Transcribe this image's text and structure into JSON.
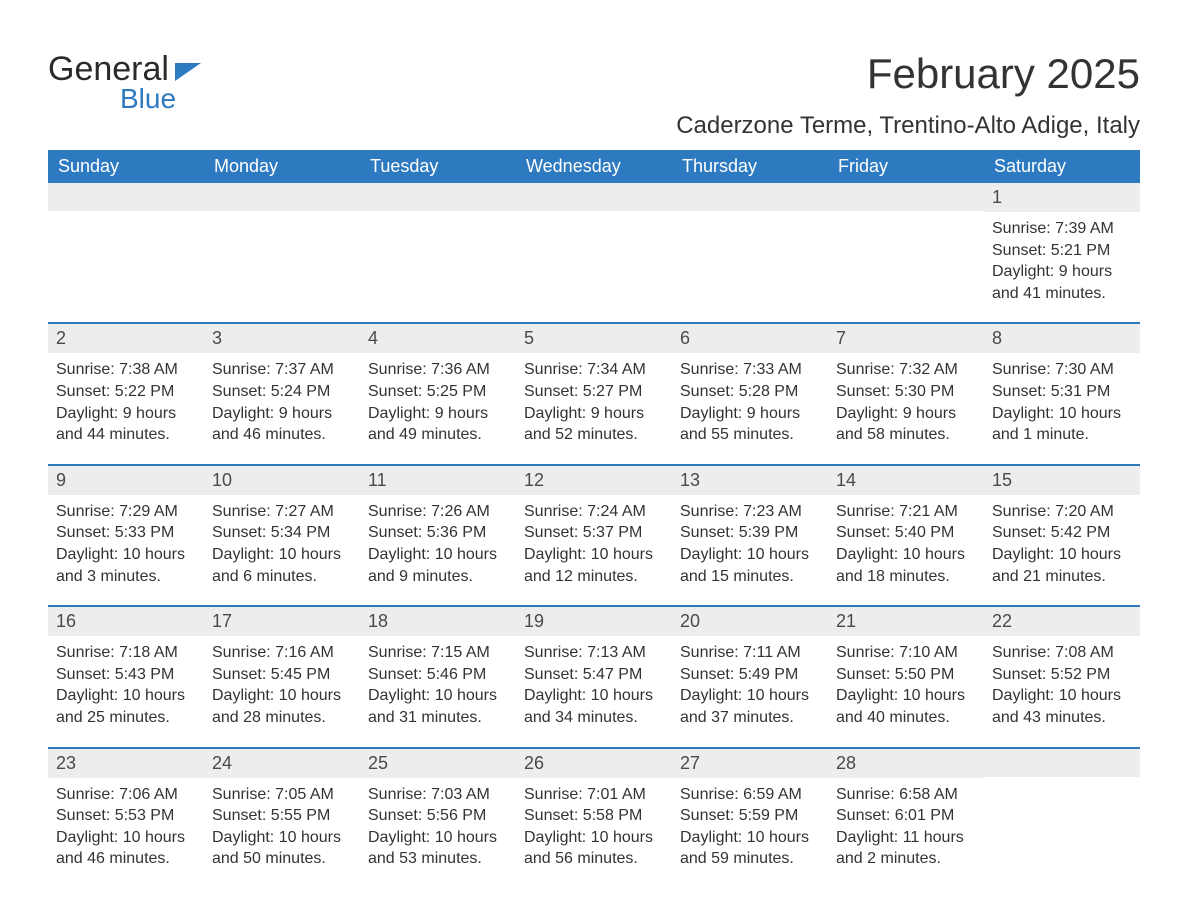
{
  "brand": {
    "word1": "General",
    "word2": "Blue"
  },
  "title": "February 2025",
  "location": "Caderzone Terme, Trentino-Alto Adige, Italy",
  "colors": {
    "header_bg": "#2d7ac0",
    "header_text": "#ffffff",
    "daynum_bg": "#ededed",
    "body_text": "#333333",
    "page_bg": "#ffffff",
    "row_border": "#2d7ac0"
  },
  "day_headers": [
    "Sunday",
    "Monday",
    "Tuesday",
    "Wednesday",
    "Thursday",
    "Friday",
    "Saturday"
  ],
  "weeks": [
    [
      {
        "n": "",
        "sunrise": "",
        "sunset": "",
        "daylight": ""
      },
      {
        "n": "",
        "sunrise": "",
        "sunset": "",
        "daylight": ""
      },
      {
        "n": "",
        "sunrise": "",
        "sunset": "",
        "daylight": ""
      },
      {
        "n": "",
        "sunrise": "",
        "sunset": "",
        "daylight": ""
      },
      {
        "n": "",
        "sunrise": "",
        "sunset": "",
        "daylight": ""
      },
      {
        "n": "",
        "sunrise": "",
        "sunset": "",
        "daylight": ""
      },
      {
        "n": "1",
        "sunrise": "Sunrise: 7:39 AM",
        "sunset": "Sunset: 5:21 PM",
        "daylight": "Daylight: 9 hours and 41 minutes."
      }
    ],
    [
      {
        "n": "2",
        "sunrise": "Sunrise: 7:38 AM",
        "sunset": "Sunset: 5:22 PM",
        "daylight": "Daylight: 9 hours and 44 minutes."
      },
      {
        "n": "3",
        "sunrise": "Sunrise: 7:37 AM",
        "sunset": "Sunset: 5:24 PM",
        "daylight": "Daylight: 9 hours and 46 minutes."
      },
      {
        "n": "4",
        "sunrise": "Sunrise: 7:36 AM",
        "sunset": "Sunset: 5:25 PM",
        "daylight": "Daylight: 9 hours and 49 minutes."
      },
      {
        "n": "5",
        "sunrise": "Sunrise: 7:34 AM",
        "sunset": "Sunset: 5:27 PM",
        "daylight": "Daylight: 9 hours and 52 minutes."
      },
      {
        "n": "6",
        "sunrise": "Sunrise: 7:33 AM",
        "sunset": "Sunset: 5:28 PM",
        "daylight": "Daylight: 9 hours and 55 minutes."
      },
      {
        "n": "7",
        "sunrise": "Sunrise: 7:32 AM",
        "sunset": "Sunset: 5:30 PM",
        "daylight": "Daylight: 9 hours and 58 minutes."
      },
      {
        "n": "8",
        "sunrise": "Sunrise: 7:30 AM",
        "sunset": "Sunset: 5:31 PM",
        "daylight": "Daylight: 10 hours and 1 minute."
      }
    ],
    [
      {
        "n": "9",
        "sunrise": "Sunrise: 7:29 AM",
        "sunset": "Sunset: 5:33 PM",
        "daylight": "Daylight: 10 hours and 3 minutes."
      },
      {
        "n": "10",
        "sunrise": "Sunrise: 7:27 AM",
        "sunset": "Sunset: 5:34 PM",
        "daylight": "Daylight: 10 hours and 6 minutes."
      },
      {
        "n": "11",
        "sunrise": "Sunrise: 7:26 AM",
        "sunset": "Sunset: 5:36 PM",
        "daylight": "Daylight: 10 hours and 9 minutes."
      },
      {
        "n": "12",
        "sunrise": "Sunrise: 7:24 AM",
        "sunset": "Sunset: 5:37 PM",
        "daylight": "Daylight: 10 hours and 12 minutes."
      },
      {
        "n": "13",
        "sunrise": "Sunrise: 7:23 AM",
        "sunset": "Sunset: 5:39 PM",
        "daylight": "Daylight: 10 hours and 15 minutes."
      },
      {
        "n": "14",
        "sunrise": "Sunrise: 7:21 AM",
        "sunset": "Sunset: 5:40 PM",
        "daylight": "Daylight: 10 hours and 18 minutes."
      },
      {
        "n": "15",
        "sunrise": "Sunrise: 7:20 AM",
        "sunset": "Sunset: 5:42 PM",
        "daylight": "Daylight: 10 hours and 21 minutes."
      }
    ],
    [
      {
        "n": "16",
        "sunrise": "Sunrise: 7:18 AM",
        "sunset": "Sunset: 5:43 PM",
        "daylight": "Daylight: 10 hours and 25 minutes."
      },
      {
        "n": "17",
        "sunrise": "Sunrise: 7:16 AM",
        "sunset": "Sunset: 5:45 PM",
        "daylight": "Daylight: 10 hours and 28 minutes."
      },
      {
        "n": "18",
        "sunrise": "Sunrise: 7:15 AM",
        "sunset": "Sunset: 5:46 PM",
        "daylight": "Daylight: 10 hours and 31 minutes."
      },
      {
        "n": "19",
        "sunrise": "Sunrise: 7:13 AM",
        "sunset": "Sunset: 5:47 PM",
        "daylight": "Daylight: 10 hours and 34 minutes."
      },
      {
        "n": "20",
        "sunrise": "Sunrise: 7:11 AM",
        "sunset": "Sunset: 5:49 PM",
        "daylight": "Daylight: 10 hours and 37 minutes."
      },
      {
        "n": "21",
        "sunrise": "Sunrise: 7:10 AM",
        "sunset": "Sunset: 5:50 PM",
        "daylight": "Daylight: 10 hours and 40 minutes."
      },
      {
        "n": "22",
        "sunrise": "Sunrise: 7:08 AM",
        "sunset": "Sunset: 5:52 PM",
        "daylight": "Daylight: 10 hours and 43 minutes."
      }
    ],
    [
      {
        "n": "23",
        "sunrise": "Sunrise: 7:06 AM",
        "sunset": "Sunset: 5:53 PM",
        "daylight": "Daylight: 10 hours and 46 minutes."
      },
      {
        "n": "24",
        "sunrise": "Sunrise: 7:05 AM",
        "sunset": "Sunset: 5:55 PM",
        "daylight": "Daylight: 10 hours and 50 minutes."
      },
      {
        "n": "25",
        "sunrise": "Sunrise: 7:03 AM",
        "sunset": "Sunset: 5:56 PM",
        "daylight": "Daylight: 10 hours and 53 minutes."
      },
      {
        "n": "26",
        "sunrise": "Sunrise: 7:01 AM",
        "sunset": "Sunset: 5:58 PM",
        "daylight": "Daylight: 10 hours and 56 minutes."
      },
      {
        "n": "27",
        "sunrise": "Sunrise: 6:59 AM",
        "sunset": "Sunset: 5:59 PM",
        "daylight": "Daylight: 10 hours and 59 minutes."
      },
      {
        "n": "28",
        "sunrise": "Sunrise: 6:58 AM",
        "sunset": "Sunset: 6:01 PM",
        "daylight": "Daylight: 11 hours and 2 minutes."
      },
      {
        "n": "",
        "sunrise": "",
        "sunset": "",
        "daylight": ""
      }
    ]
  ]
}
